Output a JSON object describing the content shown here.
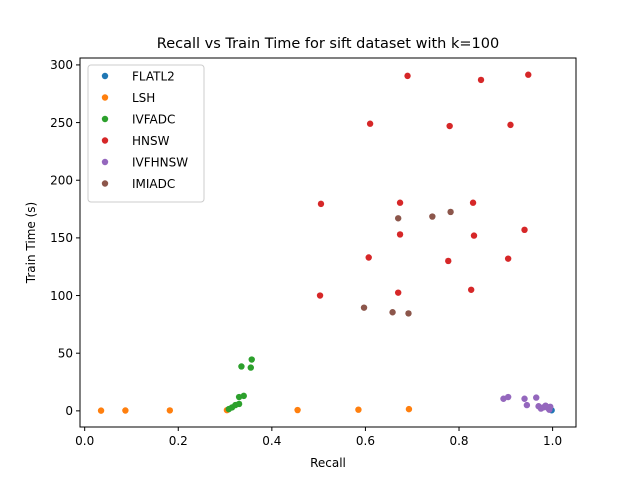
{
  "chart_data": {
    "type": "scatter",
    "title": "Recall vs Train Time for sift dataset with k=100",
    "xlabel": "Recall",
    "ylabel": "Train Time (s)",
    "xlim": [
      -0.01,
      1.05
    ],
    "ylim": [
      -14,
      306
    ],
    "xticks": [
      "0.0",
      "0.2",
      "0.4",
      "0.6",
      "0.8",
      "1.0"
    ],
    "xtick_values": [
      0.0,
      0.2,
      0.4,
      0.6,
      0.8,
      1.0
    ],
    "yticks": [
      "0",
      "50",
      "100",
      "150",
      "200",
      "250",
      "300"
    ],
    "ytick_values": [
      0,
      50,
      100,
      150,
      200,
      250,
      300
    ],
    "grid": false,
    "legend_position": "top-left",
    "series": [
      {
        "name": "FLATL2",
        "color": "#1f77b4",
        "points": [
          [
            0.998,
            0.5
          ]
        ]
      },
      {
        "name": "LSH",
        "color": "#ff7f0e",
        "points": [
          [
            0.035,
            0.2
          ],
          [
            0.087,
            0.3
          ],
          [
            0.182,
            0.4
          ],
          [
            0.304,
            0.6
          ],
          [
            0.455,
            0.7
          ],
          [
            0.585,
            1.0
          ],
          [
            0.693,
            1.5
          ]
        ]
      },
      {
        "name": "IVFADC",
        "color": "#2ca02c",
        "points": [
          [
            0.308,
            1.5
          ],
          [
            0.315,
            3.0
          ],
          [
            0.322,
            5.0
          ],
          [
            0.33,
            6.0
          ],
          [
            0.33,
            12.0
          ],
          [
            0.34,
            13.0
          ],
          [
            0.335,
            38.5
          ],
          [
            0.355,
            37.5
          ],
          [
            0.357,
            44.5
          ]
        ]
      },
      {
        "name": "HNSW",
        "color": "#d62728",
        "points": [
          [
            0.69,
            290.5
          ],
          [
            0.948,
            291.5
          ],
          [
            0.847,
            287.0
          ],
          [
            0.61,
            249.0
          ],
          [
            0.78,
            247.0
          ],
          [
            0.91,
            248.0
          ],
          [
            0.505,
            179.5
          ],
          [
            0.674,
            180.5
          ],
          [
            0.83,
            180.5
          ],
          [
            0.674,
            153.0
          ],
          [
            0.832,
            152.0
          ],
          [
            0.94,
            157.0
          ],
          [
            0.607,
            133.0
          ],
          [
            0.777,
            130.0
          ],
          [
            0.905,
            132.0
          ],
          [
            0.503,
            100.0
          ],
          [
            0.67,
            102.5
          ],
          [
            0.826,
            105.0
          ]
        ]
      },
      {
        "name": "IVFHNSW",
        "color": "#9467bd",
        "points": [
          [
            0.895,
            10.5
          ],
          [
            0.905,
            12.0
          ],
          [
            0.94,
            10.5
          ],
          [
            0.945,
            5.0
          ],
          [
            0.965,
            11.5
          ],
          [
            0.97,
            4.0
          ],
          [
            0.975,
            2.0
          ],
          [
            0.98,
            3.0
          ],
          [
            0.985,
            4.5
          ],
          [
            0.99,
            2.5
          ],
          [
            0.993,
            1.0
          ],
          [
            0.995,
            3.5
          ]
        ]
      },
      {
        "name": "IMIADC",
        "color": "#8c564b",
        "points": [
          [
            0.67,
            167.0
          ],
          [
            0.743,
            168.5
          ],
          [
            0.782,
            172.5
          ],
          [
            0.597,
            89.5
          ],
          [
            0.658,
            85.5
          ],
          [
            0.692,
            84.5
          ]
        ]
      }
    ]
  }
}
